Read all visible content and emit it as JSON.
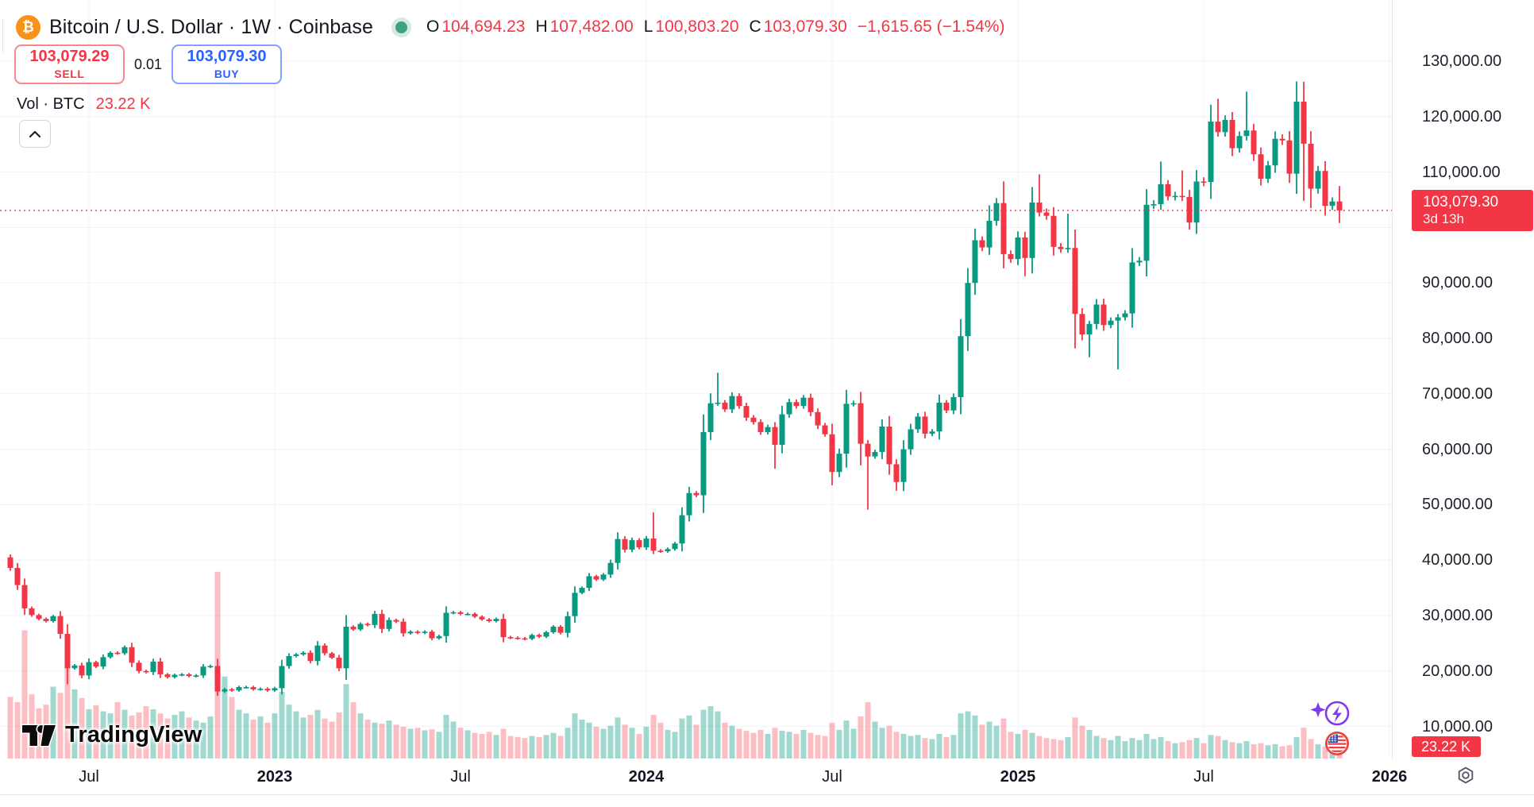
{
  "header": {
    "symbol_title": "Bitcoin / U.S. Dollar · 1W · Coinbase",
    "ohlc_items": [
      {
        "label": "O",
        "value": "104,694.23"
      },
      {
        "label": "H",
        "value": "107,482.00"
      },
      {
        "label": "L",
        "value": "100,803.20"
      },
      {
        "label": "C",
        "value": "103,079.30"
      }
    ],
    "change": "−1,615.65 (−1.54%)",
    "sell_price": "103,079.29",
    "sell_label": "SELL",
    "spread": "0.01",
    "buy_price": "103,079.30",
    "buy_label": "BUY",
    "volume_label": "Vol · BTC",
    "volume_value": "23.22 K"
  },
  "watermark_text": "TradingView",
  "price_axis": {
    "ticks": [
      {
        "v": 130,
        "label": "130,000.00"
      },
      {
        "v": 120,
        "label": "120,000.00"
      },
      {
        "v": 110,
        "label": "110,000.00"
      },
      {
        "v": 90,
        "label": "90,000.00"
      },
      {
        "v": 80,
        "label": "80,000.00"
      },
      {
        "v": 70,
        "label": "70,000.00"
      },
      {
        "v": 60,
        "label": "60,000.00"
      },
      {
        "v": 50,
        "label": "50,000.00"
      },
      {
        "v": 40,
        "label": "40,000.00"
      },
      {
        "v": 30,
        "label": "30,000.00"
      },
      {
        "v": 20,
        "label": "20,000.00"
      },
      {
        "v": 10,
        "label": "10,000.00"
      }
    ],
    "last_price_label": "103,079.30",
    "countdown": "3d 13h",
    "volume_badge": "23.22 K"
  },
  "time_axis": {
    "labels": [
      "Jul",
      "2023",
      "Jul",
      "2024",
      "Jul",
      "2025",
      "Jul",
      "2026"
    ]
  },
  "colors": {
    "up": "#089981",
    "down": "#f23645",
    "vol_up": "rgba(8,153,129,0.38)",
    "vol_down": "rgba(242,54,69,0.32)",
    "grid": "#f0f3fa",
    "axis_line": "#e0e3eb",
    "price_line": "#f23645",
    "label_bg": "#f23645",
    "buy_blue": "#2962ff",
    "btc_orange": "#f7931a",
    "status_green": "#3da27f",
    "purple": "#7e3bf2",
    "flag_red": "#e8433f",
    "flag_blue": "#3d5aa8"
  },
  "chart_data": {
    "type": "candlestick+volume",
    "timeframe": "1W",
    "price_unit": "thousand USD",
    "volume_unit": "thousand BTC",
    "y_grid_ticks_k": [
      130,
      120,
      110,
      100,
      90,
      80,
      70,
      60,
      50,
      40,
      30,
      20,
      10
    ],
    "last_price_k": 103.0793,
    "first_open_k": 40.5,
    "closes_k": [
      38.6,
      35.5,
      31.3,
      30.1,
      29.4,
      29.0,
      29.9,
      26.7,
      20.5,
      21.0,
      19.2,
      21.6,
      20.8,
      22.5,
      23.3,
      23.2,
      24.3,
      21.5,
      20.0,
      19.8,
      21.7,
      19.4,
      18.9,
      19.3,
      19.4,
      19.1,
      19.2,
      20.8,
      20.9,
      16.3,
      16.7,
      16.5,
      17.1,
      17.1,
      16.7,
      16.8,
      16.5,
      16.9,
      20.9,
      22.7,
      23.0,
      23.3,
      21.8,
      24.6,
      23.2,
      22.4,
      20.5,
      28.0,
      27.5,
      28.5,
      28.3,
      30.3,
      27.6,
      29.2,
      28.9,
      26.8,
      27.1,
      26.9,
      27.1,
      25.9,
      26.3,
      30.5,
      30.6,
      30.3,
      30.3,
      29.8,
      29.3,
      29.0,
      29.4,
      26.1,
      26.0,
      25.9,
      25.8,
      26.5,
      26.2,
      27.0,
      28.0,
      26.9,
      29.9,
      34.1,
      35.0,
      37.1,
      36.5,
      37.4,
      39.5,
      43.8,
      41.9,
      43.6,
      42.3,
      43.9,
      41.7,
      41.6,
      42.0,
      43.0,
      48.1,
      52.1,
      51.7,
      63.1,
      68.3,
      68.4,
      67.2,
      69.6,
      67.8,
      65.7,
      64.9,
      63.1,
      64.0,
      60.8,
      66.3,
      68.5,
      67.8,
      69.3,
      66.7,
      64.3,
      62.7,
      55.9,
      59.2,
      68.2,
      68.3,
      61.0,
      58.7,
      59.5,
      64.1,
      57.3,
      54.1,
      60.0,
      63.6,
      65.9,
      62.8,
      63.2,
      68.4,
      67.0,
      69.4,
      80.4,
      90.0,
      97.7,
      96.4,
      101.2,
      104.4,
      95.2,
      94.3,
      98.2,
      94.5,
      104.5,
      102.7,
      102.1,
      96.5,
      96.1,
      96.3,
      84.4,
      80.7,
      82.6,
      86.1,
      82.4,
      83.2,
      83.8,
      84.5,
      93.7,
      94.0,
      104.1,
      104.2,
      107.8,
      105.6,
      105.7,
      105.5,
      100.9,
      108.3,
      108.2,
      119.1,
      117.2,
      119.4,
      114.3,
      116.5,
      117.5,
      113.2,
      108.8,
      111.2,
      116.0,
      115.7,
      109.7,
      122.7,
      115.1,
      107.0,
      110.2,
      103.9,
      104.694,
      103.079
    ],
    "wick_overrides_k": {
      "8": [
        null,
        17.6
      ],
      "29": [
        null,
        15.5
      ],
      "90": [
        48.6,
        null
      ],
      "98": [
        70.1,
        null
      ],
      "99": [
        73.8,
        null
      ],
      "107": [
        null,
        56.5
      ],
      "115": [
        null,
        53.5
      ],
      "119": [
        null,
        57.1
      ],
      "120": [
        null,
        49.1
      ],
      "124": [
        null,
        52.5
      ],
      "135": [
        99.8,
        null
      ],
      "137": [
        104.0,
        null
      ],
      "139": [
        108.3,
        null
      ],
      "142": [
        null,
        91.2
      ],
      "144": [
        109.6,
        null
      ],
      "148": [
        102.5,
        null
      ],
      "149": [
        null,
        78.2
      ],
      "151": [
        null,
        76.6
      ],
      "155": [
        null,
        74.4
      ],
      "161": [
        111.9,
        null
      ],
      "164": [
        110.3,
        null
      ],
      "169": [
        123.2,
        null
      ],
      "173": [
        124.5,
        null
      ],
      "181": [
        126.3,
        104.8
      ],
      "182": [
        null,
        103.5
      ],
      "186": [
        107.482,
        100.803
      ]
    },
    "volumes_k": [
      120,
      110,
      250,
      125,
      98,
      105,
      140,
      128,
      230,
      135,
      118,
      96,
      104,
      92,
      88,
      110,
      95,
      84,
      90,
      102,
      96,
      88,
      78,
      85,
      92,
      80,
      74,
      70,
      82,
      364,
      160,
      120,
      95,
      88,
      76,
      82,
      70,
      88,
      130,
      105,
      92,
      80,
      85,
      95,
      78,
      72,
      90,
      145,
      110,
      88,
      76,
      70,
      68,
      74,
      66,
      62,
      58,
      60,
      55,
      57,
      52,
      85,
      72,
      60,
      55,
      50,
      48,
      52,
      46,
      58,
      44,
      42,
      40,
      44,
      42,
      46,
      50,
      44,
      60,
      88,
      76,
      70,
      62,
      58,
      64,
      80,
      66,
      60,
      48,
      62,
      85,
      70,
      56,
      52,
      78,
      84,
      66,
      95,
      102,
      92,
      70,
      64,
      58,
      54,
      50,
      56,
      48,
      60,
      54,
      52,
      48,
      56,
      50,
      46,
      44,
      70,
      56,
      74,
      58,
      82,
      110,
      72,
      60,
      64,
      52,
      48,
      44,
      46,
      40,
      38,
      48,
      42,
      46,
      88,
      92,
      84,
      66,
      72,
      64,
      78,
      52,
      48,
      56,
      50,
      44,
      40,
      38,
      36,
      42,
      80,
      64,
      56,
      44,
      40,
      36,
      44,
      34,
      40,
      36,
      48,
      38,
      42,
      34,
      30,
      32,
      36,
      40,
      30,
      46,
      44,
      36,
      32,
      30,
      34,
      28,
      30,
      26,
      28,
      24,
      26,
      42,
      60,
      38,
      28,
      24,
      18,
      23.22
    ]
  }
}
